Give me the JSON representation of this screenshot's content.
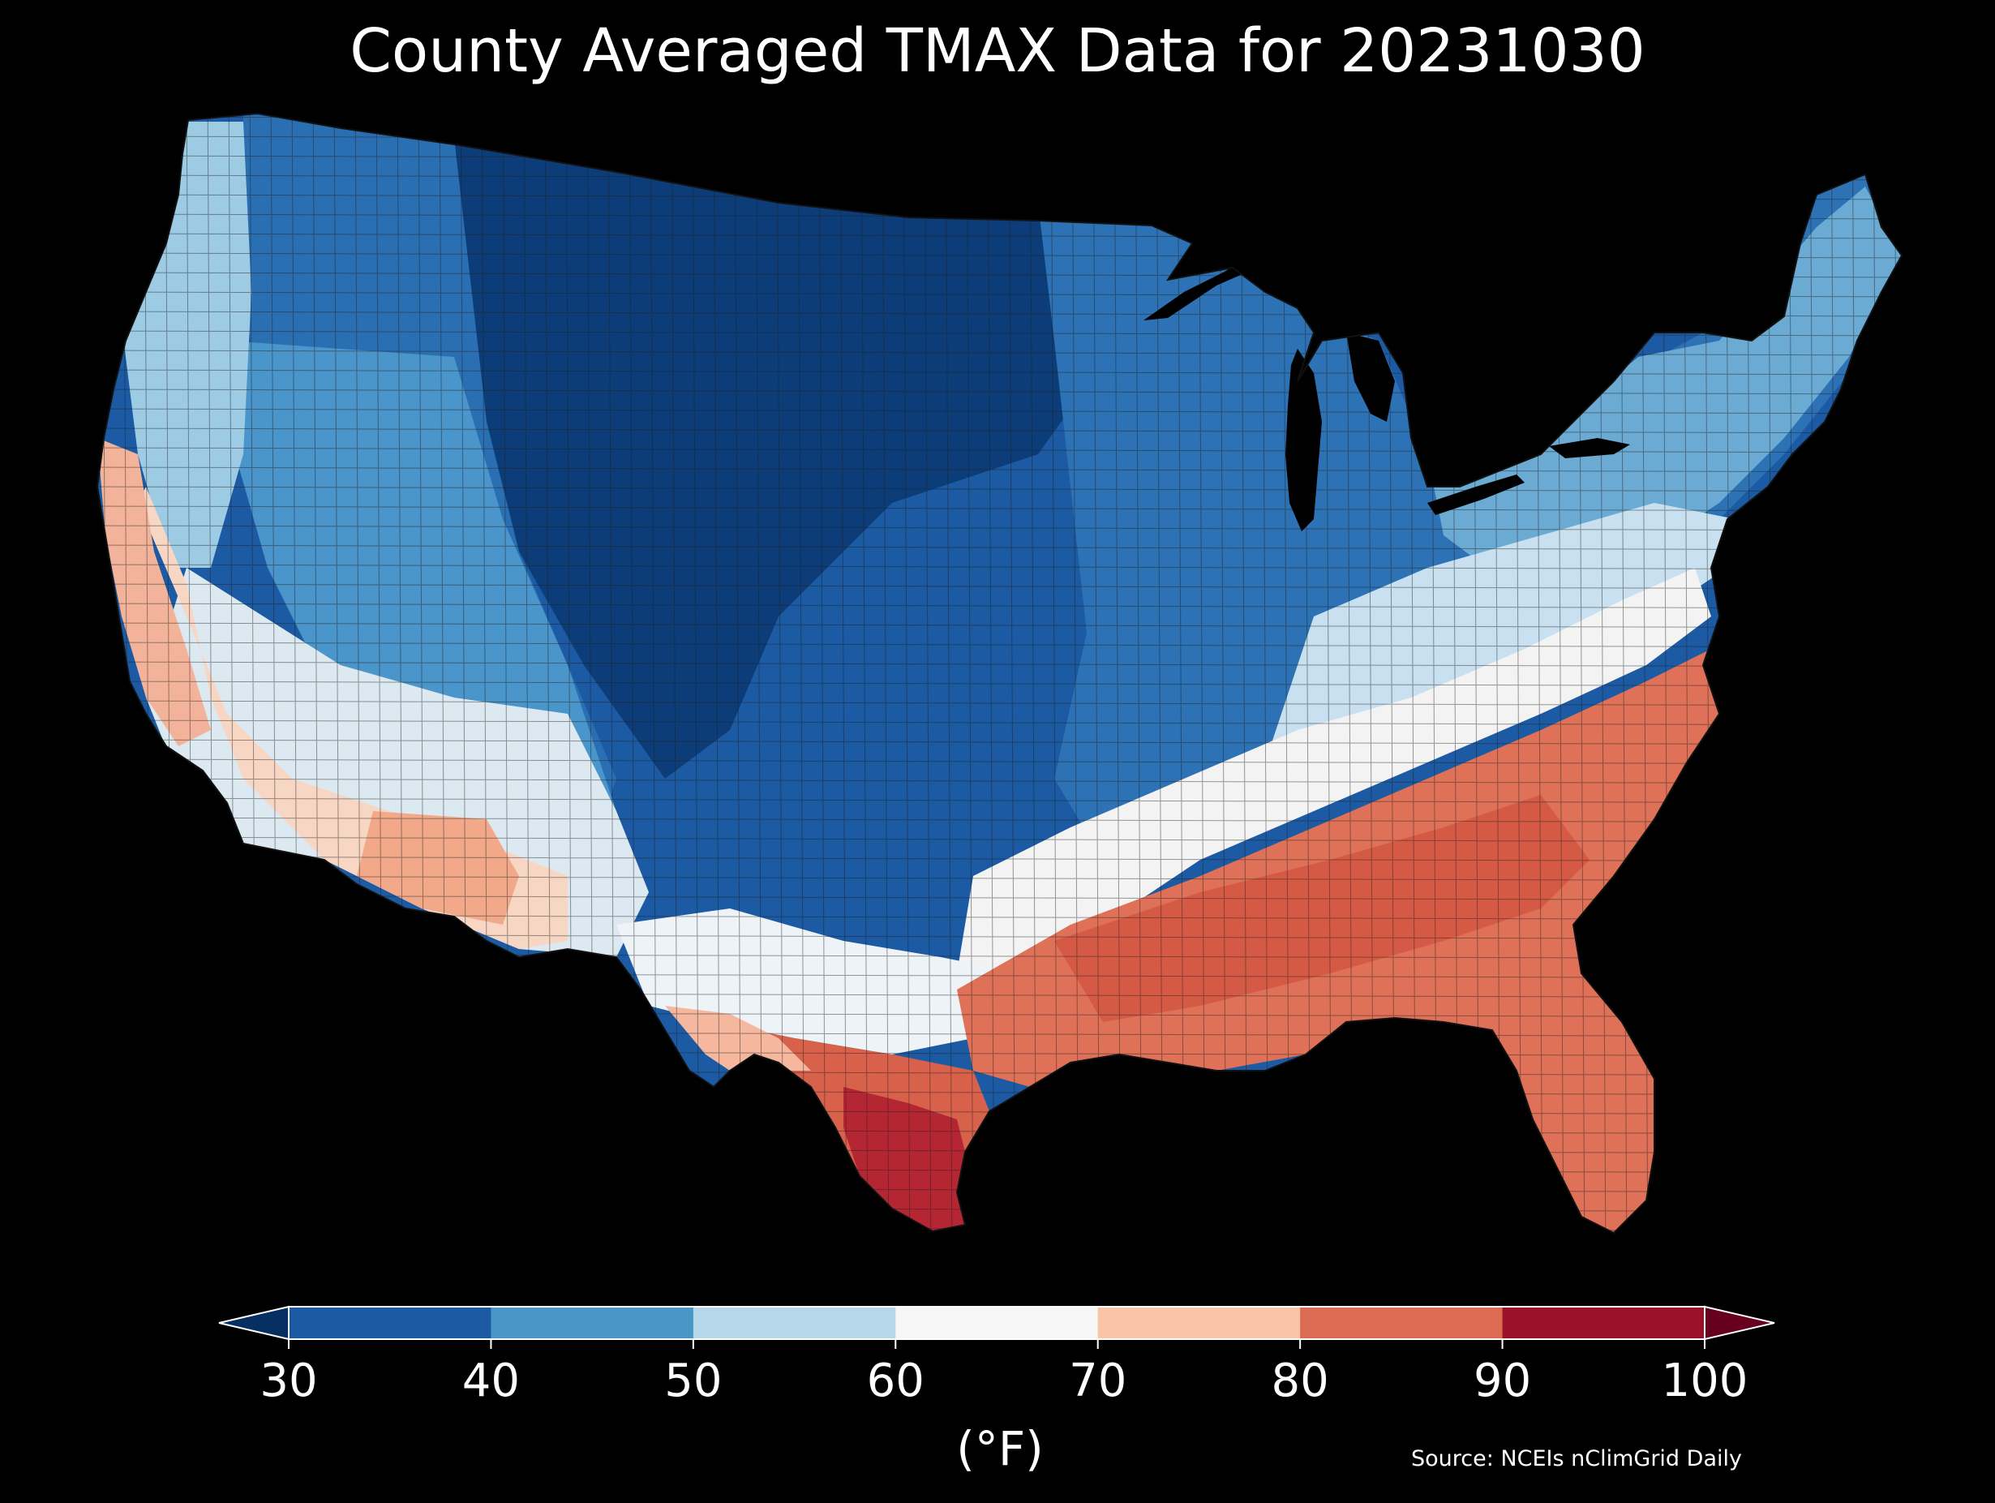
{
  "title": "County Averaged TMAX Data for 20231030",
  "source": "Source: NCEIs nClimGrid Daily",
  "colorbar": {
    "label": "(°F)",
    "ticks": [
      "30",
      "40",
      "50",
      "60",
      "70",
      "80",
      "90",
      "100"
    ],
    "bins": [
      {
        "range": [
          30,
          40
        ],
        "color": "#1c5aa3"
      },
      {
        "range": [
          40,
          50
        ],
        "color": "#4897c7"
      },
      {
        "range": [
          50,
          60
        ],
        "color": "#b6d7ea"
      },
      {
        "range": [
          60,
          70
        ],
        "color": "#f6f6f6"
      },
      {
        "range": [
          70,
          80
        ],
        "color": "#fac4a8"
      },
      {
        "range": [
          80,
          90
        ],
        "color": "#dc6b53"
      },
      {
        "range": [
          90,
          100
        ],
        "color": "#9b1127"
      }
    ],
    "under_color": "#053061",
    "over_color": "#67001f",
    "extend": "both"
  },
  "map": {
    "region": "Contiguous United States",
    "variable": "TMAX",
    "unit": "°F",
    "date": "20231030",
    "colors": {
      "background": "#000000",
      "county_border": "#222222"
    }
  }
}
